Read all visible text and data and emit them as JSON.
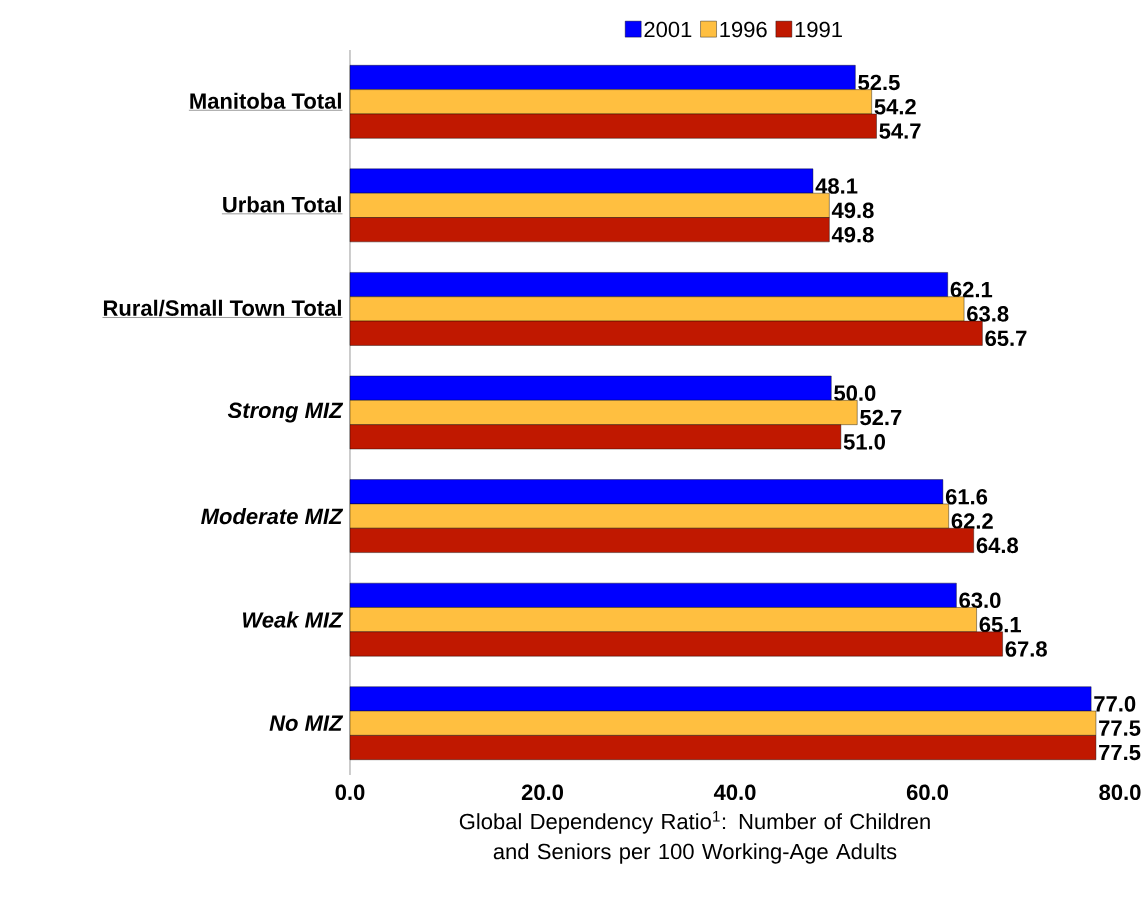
{
  "chart_data": {
    "type": "bar",
    "orientation": "horizontal",
    "categories": [
      "Manitoba Total",
      "Urban Total",
      "Rural/Small Town Total",
      "Strong MIZ",
      "Moderate MIZ",
      "Weak MIZ",
      "No MIZ"
    ],
    "series": [
      {
        "name": "2001",
        "color": "#0000ff",
        "values": [
          52.5,
          48.1,
          62.1,
          50.0,
          61.6,
          63.0,
          77.0
        ],
        "value_labels": [
          "52.5",
          "48.1",
          "62.1",
          "50.0",
          "61.6",
          "63.0",
          "77.0"
        ]
      },
      {
        "name": "1996",
        "color": "#ffbf40",
        "values": [
          54.2,
          49.8,
          63.8,
          52.7,
          62.2,
          65.1,
          77.5
        ],
        "value_labels": [
          "54.2",
          "49.8",
          "63.8",
          "52.7",
          "62.2",
          "65.1",
          "77.5"
        ]
      },
      {
        "name": "1991",
        "color": "#c01800",
        "values": [
          54.7,
          49.8,
          65.7,
          51.0,
          64.8,
          67.8,
          77.5
        ],
        "value_labels": [
          "54.7",
          "49.8",
          "65.7",
          "51.0",
          "64.8",
          "67.8",
          "77.5"
        ]
      }
    ],
    "xlabel": "Global Dependency Ratio$^{1}$: Number of Children and Seniors per 100 Working-Age Adults",
    "xlim": [
      0,
      80
    ],
    "xticks": [
      {
        "value": 0,
        "label": "0.0"
      },
      {
        "value": 20,
        "label": "20.0"
      },
      {
        "value": 40,
        "label": "40.0"
      },
      {
        "value": 60,
        "label": "60.0"
      },
      {
        "value": 80,
        "label": "80.0"
      }
    ],
    "legend": "top",
    "grid": false
  }
}
